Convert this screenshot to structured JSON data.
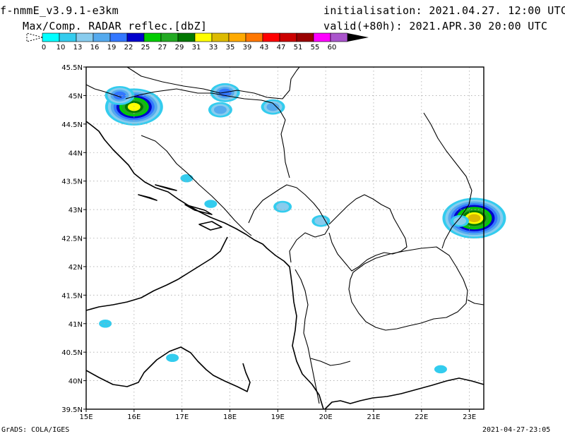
{
  "header": {
    "model": "f-nmmE_v3.9.1-e3km",
    "product": "Max/Comp. RADAR reflec.[dbZ]",
    "init_label": "initialisation:",
    "init_time": "2021.04.27. 12:00 UTC",
    "valid_label": "valid(+80h):",
    "valid_time": "2021.APR.30 20:00 UTC"
  },
  "colorbar": {
    "unit": "dbZ",
    "colors": [
      "#00ffff",
      "#33ccee",
      "#88ccee",
      "#55aaee",
      "#3377ff",
      "#0000cc",
      "#00cc00",
      "#22aa22",
      "#007700",
      "#ffff00",
      "#ddbb00",
      "#ffaa00",
      "#ff7700",
      "#ff0000",
      "#cc0000",
      "#990000",
      "#ff00ff",
      "#aa55cc",
      "#000000"
    ],
    "labels": [
      "0",
      "10",
      "13",
      "16",
      "19",
      "22",
      "25",
      "27",
      "29",
      "31",
      "33",
      "35",
      "39",
      "43",
      "47",
      "51",
      "55",
      "60"
    ]
  },
  "map": {
    "lon_min": 15,
    "lon_max": 23.3,
    "lat_min": 39.5,
    "lat_max": 45.5,
    "lon_ticks": [
      "15E",
      "16E",
      "17E",
      "18E",
      "19E",
      "20E",
      "21E",
      "22E",
      "23E"
    ],
    "lat_ticks": [
      "39.5N",
      "40N",
      "40.5N",
      "41N",
      "41.5N",
      "42N",
      "42.5N",
      "43N",
      "43.5N",
      "44N",
      "44.5N",
      "45N",
      "45.5N"
    ],
    "grid": true,
    "field": "maximum composite radar reflectivity",
    "echo_cells": [
      {
        "lon": 16.0,
        "lat": 44.8,
        "max_dbz": 31
      },
      {
        "lon": 15.7,
        "lat": 45.0,
        "max_dbz": 19
      },
      {
        "lon": 17.9,
        "lat": 45.05,
        "max_dbz": 19
      },
      {
        "lon": 17.8,
        "lat": 44.75,
        "max_dbz": 16
      },
      {
        "lon": 18.9,
        "lat": 44.8,
        "max_dbz": 16
      },
      {
        "lon": 19.1,
        "lat": 43.05,
        "max_dbz": 13
      },
      {
        "lon": 19.9,
        "lat": 42.8,
        "max_dbz": 13
      },
      {
        "lon": 23.1,
        "lat": 42.85,
        "max_dbz": 33
      },
      {
        "lon": 22.8,
        "lat": 42.8,
        "max_dbz": 13
      },
      {
        "lon": 17.6,
        "lat": 43.1,
        "max_dbz": 10
      },
      {
        "lon": 17.1,
        "lat": 43.55,
        "max_dbz": 10
      },
      {
        "lon": 16.8,
        "lat": 40.4,
        "max_dbz": 10
      },
      {
        "lon": 22.4,
        "lat": 40.2,
        "max_dbz": 10
      },
      {
        "lon": 15.4,
        "lat": 41.0,
        "max_dbz": 10
      }
    ]
  },
  "footer": {
    "left": "GrADS: COLA/IGES",
    "right": "2021-04-27-23:05"
  }
}
